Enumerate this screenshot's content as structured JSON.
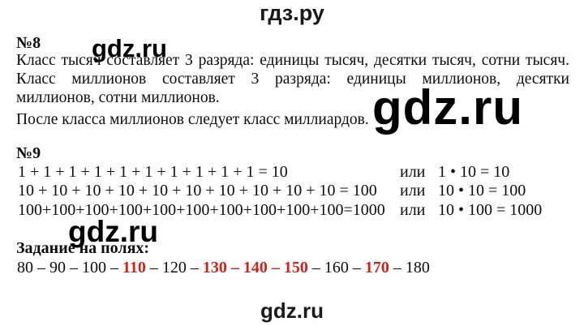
{
  "colors": {
    "accent_red": "#cf2318",
    "text": "#0d0d0d",
    "watermark": "#000000"
  },
  "branding": {
    "top_logo": "гдз.ру",
    "bottom_logo": "gdz.ru",
    "watermarks": [
      "gdz.ru",
      "gdz.ru",
      "gdz.ru"
    ]
  },
  "task8": {
    "number": "№8",
    "lines": [
      "Класс тысяч составляет 3 разряда: единицы тысяч, десятки тысяч, сотни тысяч.",
      "Класс миллионов составляет 3 разряда: единицы миллионов, десятки",
      "миллионов, сотни миллионов.",
      "После класса миллионов следует класс миллиардов."
    ]
  },
  "task9": {
    "number": "№9",
    "rows": [
      {
        "sum": "1 + 1 + 1 + 1 + 1 + 1 + 1 + 1 + 1 + 1 = 10",
        "or_label": "или",
        "product": "1 • 10 = 10"
      },
      {
        "sum": "10 + 10 + 10 + 10 + 10 + 10 + 10 + 10 + 10 + 10 = 100",
        "or_label": "или",
        "product": "10 • 10 = 100"
      },
      {
        "sum": "100+100+100+100+100+100+100+100+100+100=1000",
        "or_label": "или",
        "product": "10 • 100 = 1000"
      }
    ]
  },
  "margin_task": {
    "title": "Задание на полях:",
    "segments": [
      {
        "text": "80 – 90 – 100 – ",
        "red": false
      },
      {
        "text": "110",
        "red": true
      },
      {
        "text": " – 120 – ",
        "red": false
      },
      {
        "text": "130 – 140 – 150",
        "red": true
      },
      {
        "text": " – 160 – ",
        "red": false
      },
      {
        "text": "170",
        "red": true
      },
      {
        "text": " – 180",
        "red": false
      }
    ]
  }
}
